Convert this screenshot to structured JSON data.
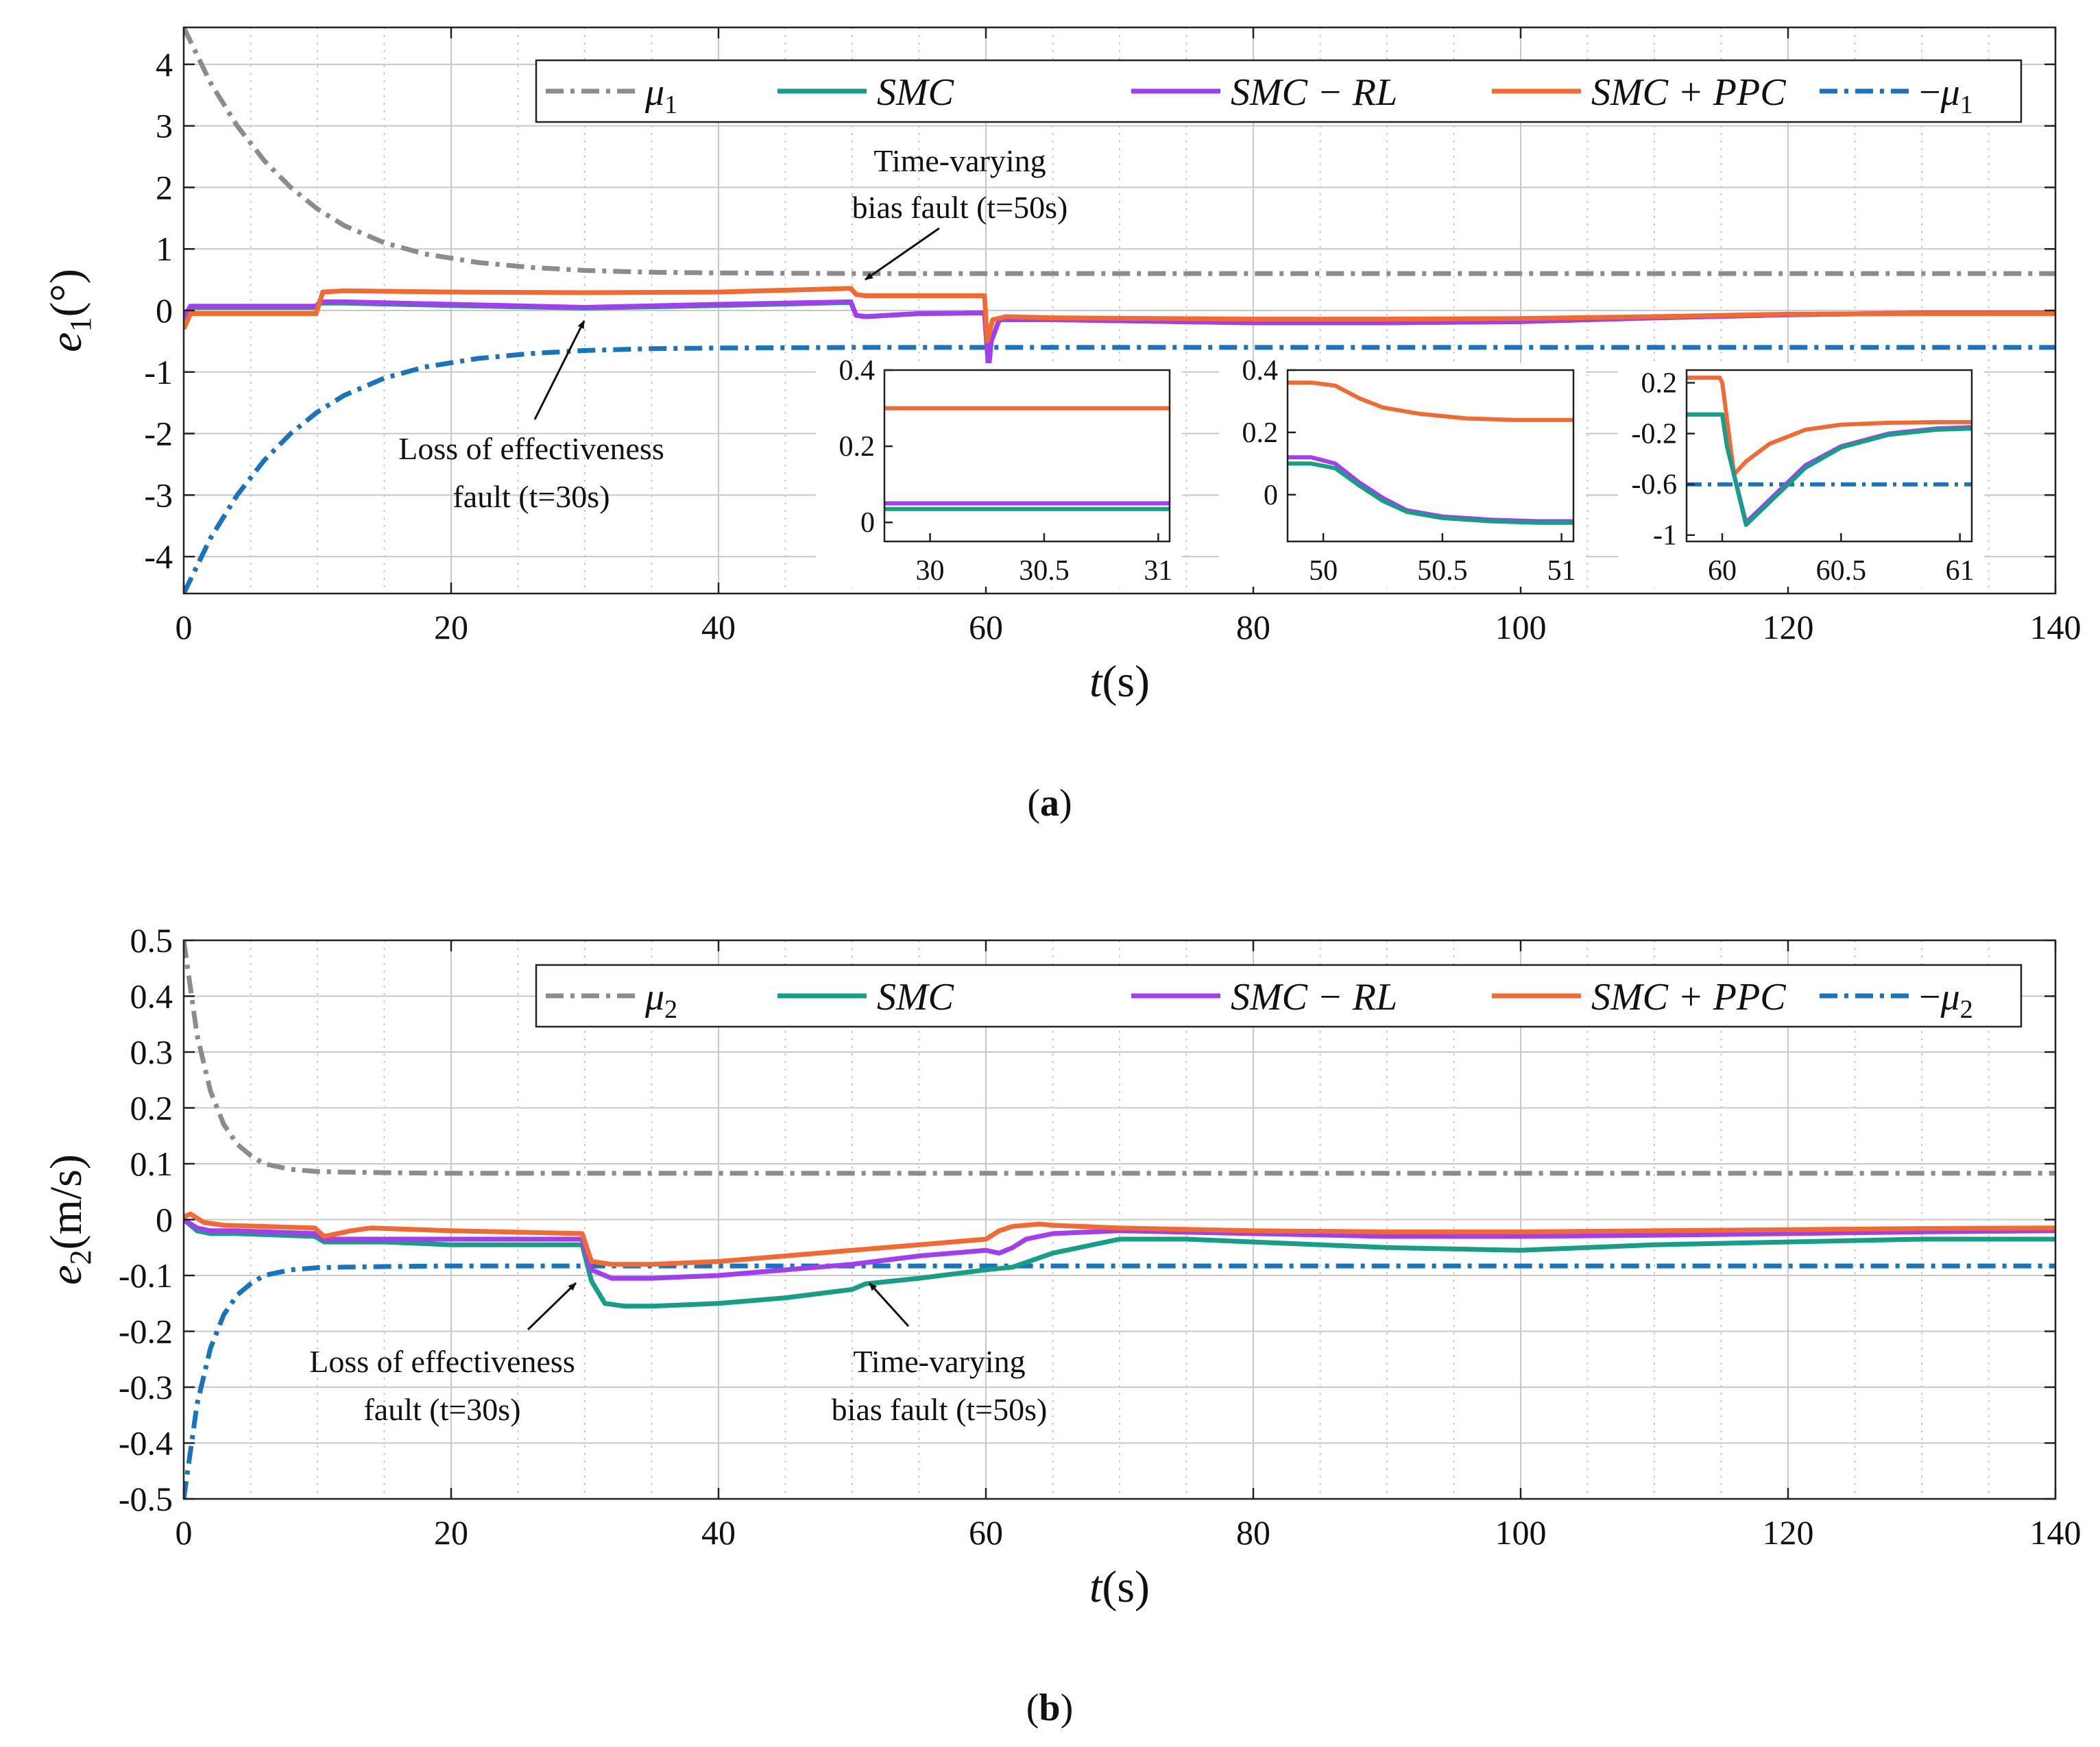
{
  "colors": {
    "mu": "#8C8C8C",
    "smc": "#169E86",
    "smc_rl": "#A03EF0",
    "smc_ppc": "#F26A31",
    "neg_mu": "#1874BE",
    "grid": "#C8C8C8",
    "axis": "#222222"
  },
  "chart_data": [
    {
      "id": "a",
      "type": "line",
      "caption_letter": "a",
      "xlabel_var": "t",
      "xlabel_unit": "(s)",
      "ylabel_var": "e",
      "ylabel_sub": "1",
      "ylabel_unit": "(°)",
      "xlim": [
        0,
        140
      ],
      "ylim": [
        -4.6,
        4.6
      ],
      "xticks": [
        0,
        20,
        40,
        60,
        80,
        100,
        120,
        140
      ],
      "yticks": [
        -4,
        -3,
        -2,
        -1,
        0,
        1,
        2,
        3,
        4
      ],
      "legend": [
        {
          "key": "mu",
          "label_var": "μ",
          "label_sub": "1",
          "prefix": ""
        },
        {
          "key": "smc",
          "label": "SMC"
        },
        {
          "key": "smc_rl",
          "label": "SMC − RL"
        },
        {
          "key": "smc_ppc",
          "label": "SMC + PPC"
        },
        {
          "key": "neg_mu",
          "label_var": "μ",
          "label_sub": "1",
          "prefix": "−"
        }
      ],
      "series": [
        {
          "key": "mu",
          "name": "μ1",
          "style": "dashdot",
          "x": [
            0,
            2,
            4,
            6,
            8,
            10,
            12,
            15,
            18,
            22,
            26,
            30,
            35,
            40,
            50,
            60,
            80,
            100,
            140
          ],
          "y": [
            4.6,
            3.7,
            3.0,
            2.44,
            2.0,
            1.65,
            1.38,
            1.1,
            0.92,
            0.78,
            0.7,
            0.65,
            0.62,
            0.61,
            0.6,
            0.6,
            0.6,
            0.6,
            0.6
          ]
        },
        {
          "key": "neg_mu",
          "name": "−μ1",
          "style": "dashdot",
          "x": [
            0,
            2,
            4,
            6,
            8,
            10,
            12,
            15,
            18,
            22,
            26,
            30,
            35,
            40,
            50,
            60,
            80,
            100,
            140
          ],
          "y": [
            -4.6,
            -3.7,
            -3.0,
            -2.44,
            -2.0,
            -1.65,
            -1.38,
            -1.1,
            -0.92,
            -0.78,
            -0.7,
            -0.65,
            -0.62,
            -0.61,
            -0.6,
            -0.6,
            -0.6,
            -0.6,
            -0.6
          ]
        },
        {
          "key": "smc",
          "name": "SMC",
          "style": "solid",
          "x": [
            0,
            0.5,
            2,
            5,
            9.9,
            10.2,
            12,
            20,
            30,
            40,
            49.9,
            50.3,
            51,
            55,
            59.9,
            60.2,
            60.4,
            61,
            65,
            80,
            90,
            100,
            110,
            120,
            130,
            140
          ],
          "y": [
            -0.15,
            0.05,
            0.05,
            0.05,
            0.05,
            0.12,
            0.12,
            0.08,
            0.04,
            0.08,
            0.13,
            -0.08,
            -0.1,
            -0.05,
            -0.04,
            -0.95,
            -0.5,
            -0.15,
            -0.15,
            -0.2,
            -0.2,
            -0.18,
            -0.12,
            -0.07,
            -0.04,
            -0.04
          ]
        },
        {
          "key": "smc_rl",
          "name": "SMC − RL",
          "style": "solid",
          "x": [
            0,
            0.5,
            2,
            5,
            9.9,
            10.2,
            12,
            20,
            30,
            40,
            49.9,
            50.3,
            51,
            55,
            59.9,
            60.2,
            60.4,
            61,
            65,
            80,
            90,
            100,
            110,
            120,
            130,
            140
          ],
          "y": [
            -0.12,
            0.07,
            0.07,
            0.07,
            0.07,
            0.14,
            0.14,
            0.1,
            0.05,
            0.1,
            0.14,
            -0.08,
            -0.1,
            -0.05,
            -0.04,
            -0.95,
            -0.5,
            -0.15,
            -0.15,
            -0.2,
            -0.2,
            -0.18,
            -0.12,
            -0.07,
            -0.04,
            -0.04
          ]
        },
        {
          "key": "smc_ppc",
          "name": "SMC + PPC",
          "style": "solid",
          "x": [
            0,
            0.5,
            3,
            9.9,
            10.4,
            12,
            20,
            30,
            40,
            49.9,
            50.3,
            51,
            55,
            59.9,
            60.1,
            60.5,
            61.5,
            65,
            80,
            90,
            100,
            110,
            120,
            130,
            140
          ],
          "y": [
            -0.3,
            -0.05,
            -0.05,
            -0.05,
            0.3,
            0.32,
            0.3,
            0.29,
            0.3,
            0.36,
            0.26,
            0.24,
            0.24,
            0.24,
            -0.5,
            -0.15,
            -0.1,
            -0.12,
            -0.14,
            -0.14,
            -0.13,
            -0.1,
            -0.06,
            -0.05,
            -0.05
          ]
        }
      ],
      "annotations": [
        {
          "lines": [
            "Time-varying",
            "bias fault (t=50s)"
          ]
        },
        {
          "lines": [
            "Loss of effectiveness",
            "fault (t=30s)"
          ]
        }
      ],
      "insets": [
        {
          "id": "a1",
          "xlim": [
            29.8,
            31.05
          ],
          "ylim": [
            -0.05,
            0.4
          ],
          "xticks": [
            30,
            30.5,
            31
          ],
          "xticklabels": [
            "30",
            "30.5",
            "31"
          ],
          "yticks": [
            0,
            0.2,
            0.4
          ],
          "yticklabels": [
            "0",
            "0.2",
            "0.4"
          ],
          "series": [
            {
              "key": "smc_ppc",
              "x": [
                29.8,
                31.05
              ],
              "y": [
                0.3,
                0.3
              ]
            },
            {
              "key": "smc_rl",
              "x": [
                29.8,
                31.05
              ],
              "y": [
                0.05,
                0.05
              ]
            },
            {
              "key": "smc",
              "x": [
                29.8,
                31.05
              ],
              "y": [
                0.035,
                0.035
              ]
            }
          ]
        },
        {
          "id": "a2",
          "xlim": [
            49.85,
            51.05
          ],
          "ylim": [
            -0.15,
            0.4
          ],
          "xticks": [
            50,
            50.5,
            51
          ],
          "xticklabels": [
            "50",
            "50.5",
            "51"
          ],
          "yticks": [
            0,
            0.2,
            0.4
          ],
          "yticklabels": [
            "0",
            "0.2",
            "0.4"
          ],
          "series": [
            {
              "key": "smc_ppc",
              "x": [
                49.85,
                49.95,
                50.05,
                50.15,
                50.25,
                50.4,
                50.6,
                50.8,
                51.05
              ],
              "y": [
                0.36,
                0.36,
                0.35,
                0.31,
                0.28,
                0.26,
                0.245,
                0.24,
                0.24
              ]
            },
            {
              "key": "smc_rl",
              "x": [
                49.85,
                49.95,
                50.05,
                50.15,
                50.25,
                50.35,
                50.5,
                50.7,
                50.9,
                51.05
              ],
              "y": [
                0.12,
                0.12,
                0.1,
                0.04,
                -0.01,
                -0.05,
                -0.07,
                -0.08,
                -0.085,
                -0.085
              ]
            },
            {
              "key": "smc",
              "x": [
                49.85,
                49.95,
                50.05,
                50.15,
                50.25,
                50.35,
                50.5,
                50.7,
                50.9,
                51.05
              ],
              "y": [
                0.1,
                0.1,
                0.085,
                0.03,
                -0.02,
                -0.055,
                -0.075,
                -0.085,
                -0.09,
                -0.09
              ]
            }
          ]
        },
        {
          "id": "a3",
          "xlim": [
            59.85,
            61.05
          ],
          "ylim": [
            -1.05,
            0.3
          ],
          "xticks": [
            60,
            60.5,
            61
          ],
          "xticklabels": [
            "60",
            "60.5",
            "61"
          ],
          "yticks": [
            -1,
            -0.6,
            -0.2,
            0.2
          ],
          "yticklabels": [
            "-1",
            "-0.6",
            "-0.2",
            "0.2"
          ],
          "series": [
            {
              "key": "neg_mu",
              "x": [
                59.85,
                61.05
              ],
              "y": [
                -0.6,
                -0.6
              ]
            },
            {
              "key": "smc_ppc",
              "x": [
                59.85,
                59.99,
                60.0,
                60.05,
                60.1,
                60.2,
                60.35,
                60.5,
                60.7,
                60.9,
                61.05
              ],
              "y": [
                0.24,
                0.24,
                0.2,
                -0.52,
                -0.42,
                -0.28,
                -0.17,
                -0.13,
                -0.115,
                -0.11,
                -0.11
              ]
            },
            {
              "key": "smc_rl",
              "x": [
                59.85,
                60.0,
                60.02,
                60.1,
                60.2,
                60.35,
                60.5,
                60.7,
                60.9,
                61.05
              ],
              "y": [
                -0.05,
                -0.05,
                -0.3,
                -0.9,
                -0.72,
                -0.45,
                -0.3,
                -0.2,
                -0.16,
                -0.15
              ]
            },
            {
              "key": "smc",
              "x": [
                59.85,
                60.0,
                60.02,
                60.1,
                60.2,
                60.35,
                60.5,
                60.7,
                60.9,
                61.05
              ],
              "y": [
                -0.05,
                -0.05,
                -0.3,
                -0.92,
                -0.74,
                -0.47,
                -0.31,
                -0.21,
                -0.17,
                -0.16
              ]
            }
          ]
        }
      ]
    },
    {
      "id": "b",
      "type": "line",
      "caption_letter": "b",
      "xlabel_var": "t",
      "xlabel_unit": "(s)",
      "ylabel_var": "e",
      "ylabel_sub": "2",
      "ylabel_unit": "(m/s)",
      "xlim": [
        0,
        140
      ],
      "ylim": [
        -0.5,
        0.5
      ],
      "xticks": [
        0,
        20,
        40,
        60,
        80,
        100,
        120,
        140
      ],
      "yticks": [
        -0.5,
        -0.4,
        -0.3,
        -0.2,
        -0.1,
        0,
        0.1,
        0.2,
        0.3,
        0.4,
        0.5
      ],
      "yticklabels": [
        "-0.5",
        "-0.4",
        "-0.3",
        "-0.2",
        "-0.1",
        "0",
        "0.1",
        "0.2",
        "0.3",
        "0.4",
        "0.5"
      ],
      "legend": [
        {
          "key": "mu",
          "label_var": "μ",
          "label_sub": "2",
          "prefix": ""
        },
        {
          "key": "smc",
          "label": "SMC"
        },
        {
          "key": "smc_rl",
          "label": "SMC − RL"
        },
        {
          "key": "smc_ppc",
          "label": "SMC + PPC"
        },
        {
          "key": "neg_mu",
          "label_var": "μ",
          "label_sub": "2",
          "prefix": "−"
        }
      ],
      "series": [
        {
          "key": "mu",
          "name": "μ2",
          "style": "dashdot",
          "x": [
            0,
            1,
            2,
            3,
            4,
            5,
            6,
            8,
            10,
            12,
            15,
            20,
            40,
            60,
            80,
            100,
            140
          ],
          "y": [
            0.5,
            0.33,
            0.23,
            0.17,
            0.135,
            0.115,
            0.1,
            0.09,
            0.086,
            0.085,
            0.084,
            0.083,
            0.083,
            0.083,
            0.083,
            0.083,
            0.083
          ]
        },
        {
          "key": "neg_mu",
          "name": "−μ2",
          "style": "dashdot",
          "x": [
            0,
            1,
            2,
            3,
            4,
            5,
            6,
            8,
            10,
            12,
            15,
            20,
            40,
            60,
            80,
            100,
            140
          ],
          "y": [
            -0.5,
            -0.33,
            -0.23,
            -0.17,
            -0.135,
            -0.115,
            -0.1,
            -0.09,
            -0.086,
            -0.085,
            -0.084,
            -0.083,
            -0.083,
            -0.083,
            -0.083,
            -0.083,
            -0.083
          ]
        },
        {
          "key": "smc",
          "name": "SMC",
          "style": "solid",
          "x": [
            0,
            1,
            2,
            4,
            9.8,
            10.5,
            12,
            15,
            20,
            25,
            29.8,
            30.5,
            31.5,
            33,
            35,
            40,
            45,
            50,
            51,
            55,
            60,
            62,
            65,
            70,
            75,
            80,
            90,
            100,
            110,
            120,
            130,
            140
          ],
          "y": [
            0,
            -0.02,
            -0.025,
            -0.025,
            -0.03,
            -0.04,
            -0.04,
            -0.04,
            -0.045,
            -0.045,
            -0.045,
            -0.11,
            -0.15,
            -0.155,
            -0.155,
            -0.15,
            -0.14,
            -0.125,
            -0.115,
            -0.105,
            -0.09,
            -0.085,
            -0.06,
            -0.035,
            -0.035,
            -0.04,
            -0.05,
            -0.055,
            -0.045,
            -0.04,
            -0.035,
            -0.035
          ]
        },
        {
          "key": "smc_rl",
          "name": "SMC − RL",
          "style": "solid",
          "x": [
            0,
            1,
            2,
            4,
            9.8,
            10.5,
            12,
            15,
            20,
            25,
            29.8,
            30.5,
            32,
            35,
            40,
            45,
            50,
            55,
            60,
            61,
            62,
            63,
            65,
            70,
            80,
            90,
            100,
            110,
            120,
            130,
            140
          ],
          "y": [
            0,
            -0.015,
            -0.02,
            -0.02,
            -0.025,
            -0.035,
            -0.035,
            -0.035,
            -0.035,
            -0.035,
            -0.035,
            -0.09,
            -0.105,
            -0.105,
            -0.1,
            -0.09,
            -0.08,
            -0.065,
            -0.055,
            -0.06,
            -0.05,
            -0.035,
            -0.025,
            -0.02,
            -0.025,
            -0.03,
            -0.03,
            -0.028,
            -0.025,
            -0.022,
            -0.02
          ]
        },
        {
          "key": "smc_ppc",
          "name": "SMC + PPC",
          "style": "solid",
          "x": [
            0,
            0.5,
            1.5,
            3,
            9.8,
            10.5,
            11.5,
            12.5,
            14,
            20,
            29.8,
            30.5,
            32,
            35,
            40,
            45,
            50,
            55,
            60,
            61,
            62,
            64,
            65,
            70,
            80,
            90,
            100,
            110,
            120,
            130,
            140
          ],
          "y": [
            0.005,
            0.01,
            -0.005,
            -0.01,
            -0.015,
            -0.03,
            -0.025,
            -0.02,
            -0.015,
            -0.02,
            -0.025,
            -0.075,
            -0.08,
            -0.08,
            -0.075,
            -0.065,
            -0.055,
            -0.045,
            -0.035,
            -0.02,
            -0.012,
            -0.008,
            -0.01,
            -0.015,
            -0.02,
            -0.022,
            -0.022,
            -0.02,
            -0.018,
            -0.016,
            -0.015
          ]
        }
      ],
      "annotations": [
        {
          "lines": [
            "Loss of effectiveness",
            "fault (t=30s)"
          ]
        },
        {
          "lines": [
            "Time-varying",
            "bias fault (t=50s)"
          ]
        }
      ]
    }
  ]
}
